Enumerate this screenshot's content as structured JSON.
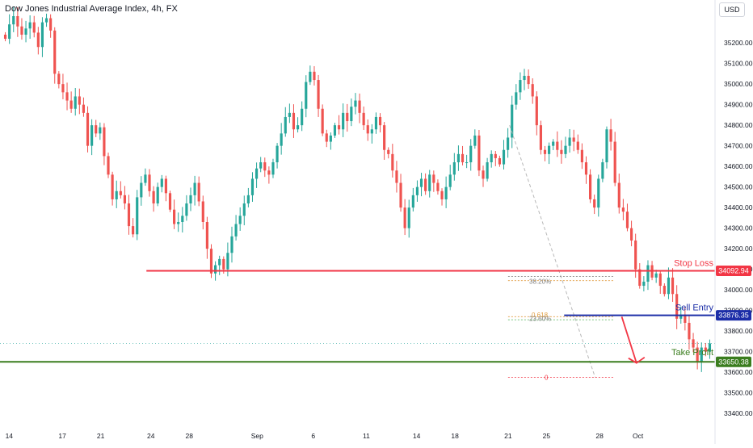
{
  "header": {
    "title": "Dow Jones Industrial Average Index, 4h, FX",
    "currency": "USD"
  },
  "colors": {
    "up": "#26a69a",
    "down": "#ef5350",
    "stop_loss": "#f23645",
    "sell_entry": "#1c2ea8",
    "take_profit": "#3a7d1e",
    "fib": "#b8b8b8"
  },
  "levels": {
    "stop_loss": {
      "label": "Stop Loss",
      "price": 34092.94,
      "price_text": "34092.94"
    },
    "sell_entry": {
      "label": "Sell Entry",
      "price": 33876.35,
      "price_text": "33876.35"
    },
    "take_profit": {
      "label": "Take Profit",
      "price": 33650.38,
      "price_text": "33650.38"
    }
  },
  "fib_labels": [
    "38.20%",
    "0.618",
    "23.60%",
    "0"
  ],
  "chart_data": {
    "type": "candlestick",
    "title": "Dow Jones Industrial Average Index, 4h, FX",
    "ylim": [
      33330,
      35330
    ],
    "y_ticks": [
      35200,
      35100,
      35000,
      34900,
      34800,
      34700,
      34600,
      34500,
      34400,
      34300,
      34200,
      34100,
      34000,
      33900,
      33800,
      33700,
      33600,
      33500,
      33400
    ],
    "y_tick_labels": [
      "35200.00",
      "35100.00",
      "35000.00",
      "34900.00",
      "34800.00",
      "34700.00",
      "34600.00",
      "34500.00",
      "34400.00",
      "34300.00",
      "34200.00",
      "34100.00",
      "34000.00",
      "33900.00",
      "33800.00",
      "33700.00",
      "33600.00",
      "33500.00",
      "33400.00"
    ],
    "x_tick_labels": [
      "14",
      "17",
      "21",
      "24",
      "28",
      "Sep",
      "6",
      "11",
      "14",
      "18",
      "21",
      "25",
      "28",
      "Oct"
    ],
    "x_tick_index": [
      2,
      20,
      33,
      50,
      63,
      86,
      105,
      123,
      140,
      153,
      171,
      184,
      202,
      215
    ],
    "candle_index_range": [
      0,
      240
    ],
    "grid": false,
    "closes": [
      35220,
      35290,
      35330,
      35280,
      35240,
      35270,
      35300,
      35250,
      35180,
      35300,
      35320,
      35260,
      35050,
      35000,
      34960,
      34920,
      34880,
      34940,
      34900,
      34860,
      34700,
      34800,
      34760,
      34790,
      34650,
      34560,
      34440,
      34480,
      34460,
      34420,
      34310,
      34270,
      34450,
      34520,
      34560,
      34480,
      34420,
      34500,
      34540,
      34470,
      34390,
      34320,
      34330,
      34360,
      34420,
      34460,
      34520,
      34430,
      34330,
      34200,
      34080,
      34120,
      34150,
      34100,
      34180,
      34260,
      34320,
      34360,
      34420,
      34460,
      34540,
      34590,
      34620,
      34580,
      34560,
      34620,
      34700,
      34760,
      34840,
      34860,
      34780,
      34800,
      34880,
      35010,
      35060,
      35020,
      34880,
      34760,
      34720,
      34750,
      34800,
      34780,
      34860,
      34820,
      34890,
      34920,
      34860,
      34800,
      34760,
      34780,
      34840,
      34800,
      34680,
      34660,
      34580,
      34520,
      34400,
      34300,
      34400,
      34460,
      34500,
      34540,
      34480,
      34560,
      34520,
      34480,
      34440,
      34500,
      34560,
      34620,
      34660,
      34620,
      34620,
      34700,
      34750,
      34580,
      34540,
      34620,
      34660,
      34640,
      34610,
      34680,
      34740,
      34900,
      34960,
      35020,
      35040,
      35000,
      34940,
      34800,
      34680,
      34660,
      34700,
      34720,
      34680,
      34660,
      34700,
      34740,
      34720,
      34680,
      34620,
      34560,
      34440,
      34400,
      34540,
      34620,
      34780,
      34720,
      34520,
      34400,
      34380,
      34300,
      34240,
      34100,
      34020,
      34040,
      34120,
      34060,
      34080,
      34020,
      33980,
      34060,
      33980,
      33860,
      33880,
      33840,
      33760,
      33720,
      33650,
      33720,
      33700,
      33740
    ]
  }
}
